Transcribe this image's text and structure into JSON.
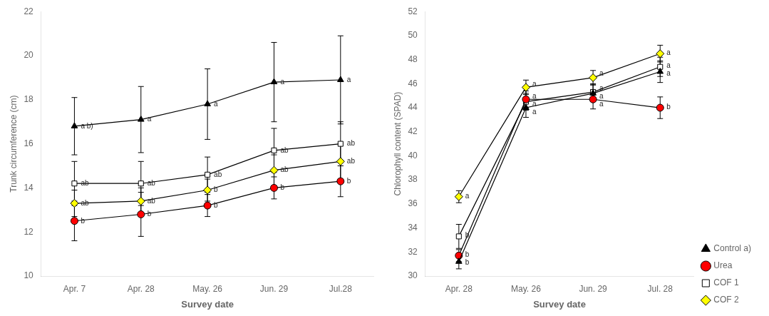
{
  "chart_data": [
    {
      "type": "line",
      "categories": [
        "Apr. 7",
        "Apr. 28",
        "May. 26",
        "Jun. 29",
        "Jul.28"
      ],
      "xlabel": "Survey date",
      "ylabel": "Trunk circumference (cm)",
      "ylim": [
        10,
        22
      ],
      "yticks": [
        10,
        12,
        14,
        16,
        18,
        20,
        22
      ],
      "grid": false,
      "color": "black",
      "series": [
        {
          "color": "black",
          "marker": "triangle",
          "values": [
            16.8,
            17.1,
            17.8,
            18.8,
            18.9
          ],
          "yerr": [
            1.3,
            1.5,
            1.6,
            1.8,
            2.0
          ],
          "annotations": [
            "a b)",
            "a",
            "a",
            "a",
            "a"
          ]
        },
        {
          "color": "red",
          "marker": "circle",
          "values": [
            12.5,
            12.8,
            13.2,
            14.0,
            14.3
          ],
          "yerr": [
            0.9,
            1.0,
            0.5,
            0.5,
            0.7
          ],
          "annotations": [
            "b",
            "b",
            "b",
            "b",
            "b"
          ]
        },
        {
          "color": "white",
          "marker": "square",
          "values": [
            14.2,
            14.2,
            14.6,
            15.7,
            16.0
          ],
          "yerr": [
            1.0,
            1.0,
            0.8,
            1.0,
            1.0
          ],
          "annotations": [
            "ab",
            "ab",
            "ab",
            "ab",
            "ab"
          ]
        },
        {
          "color": "yellow",
          "marker": "diamond",
          "values": [
            13.3,
            13.4,
            13.9,
            14.8,
            15.2
          ],
          "yerr": [
            0.6,
            0.6,
            0.5,
            0.7,
            0.8
          ],
          "annotations": [
            "ab",
            "ab",
            "b",
            "ab",
            "ab"
          ]
        }
      ]
    },
    {
      "type": "line",
      "categories": [
        "Apr. 28",
        "May. 26",
        "Jun. 29",
        "Jul. 28"
      ],
      "xlabel": "Survey date",
      "ylabel": "Chlorophyll content (SPAD)",
      "ylim": [
        30,
        52
      ],
      "yticks": [
        30,
        32,
        34,
        36,
        38,
        40,
        42,
        44,
        46,
        48,
        50,
        52
      ],
      "grid": false,
      "legend": "lower right",
      "color": "black",
      "series": [
        {
          "name": "Control a)",
          "color": "black",
          "marker": "triangle",
          "values": [
            31.2,
            44.0,
            45.2,
            47.0
          ],
          "yerr": [
            0.6,
            0.8,
            0.7,
            0.9
          ],
          "annotations": [
            "b",
            "a",
            "a",
            "a"
          ]
        },
        {
          "name": "Urea",
          "color": "red",
          "marker": "circle",
          "values": [
            31.7,
            44.7,
            44.7,
            44.0
          ],
          "yerr": [
            0.5,
            0.7,
            0.8,
            0.9
          ],
          "annotations": [
            "b",
            "a",
            "a",
            "b"
          ]
        },
        {
          "name": "COF 1",
          "color": "white",
          "marker": "square",
          "values": [
            33.3,
            44.5,
            45.3,
            47.4
          ],
          "yerr": [
            1.0,
            0.7,
            0.7,
            0.8
          ],
          "annotations": [
            "b",
            "a",
            "a",
            "a"
          ]
        },
        {
          "name": "COF 2",
          "color": "yellow",
          "marker": "diamond",
          "values": [
            36.6,
            45.7,
            46.5,
            48.5
          ],
          "yerr": [
            0.5,
            0.6,
            0.6,
            0.7
          ],
          "annotations": [
            "a",
            "a",
            "a",
            "a"
          ]
        }
      ]
    }
  ]
}
